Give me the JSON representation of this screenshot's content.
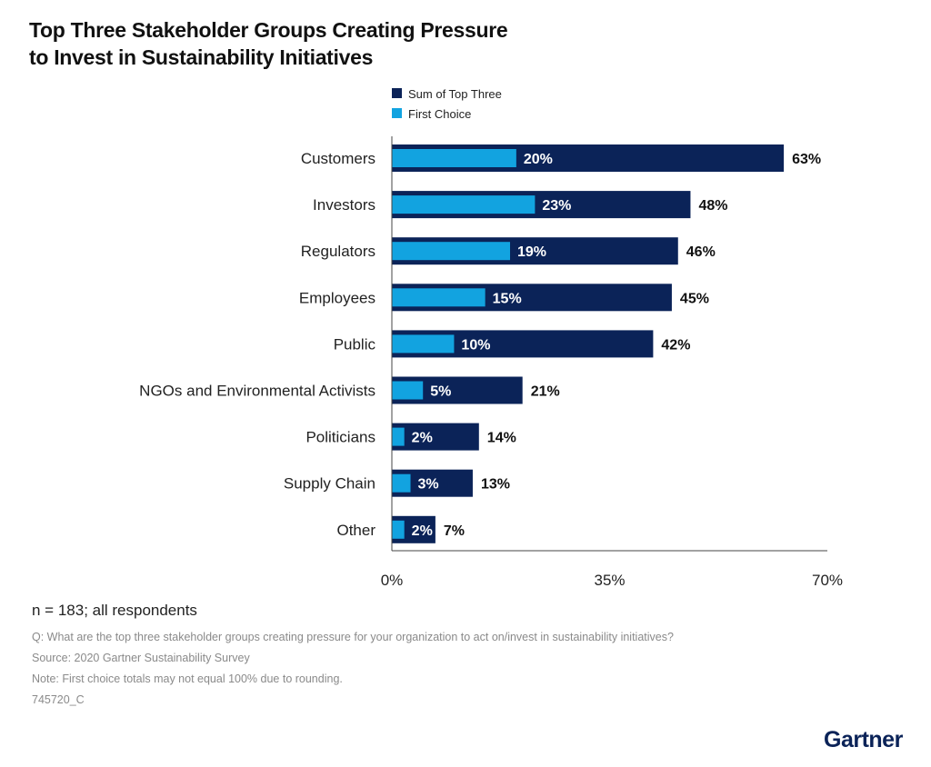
{
  "chart_data": {
    "type": "bar",
    "orientation": "horizontal",
    "title": "Top Three Stakeholder Groups Creating Pressure to Invest in Sustainability Initiatives",
    "categories": [
      "Customers",
      "Investors",
      "Regulators",
      "Employees",
      "Public",
      "NGOs and Environmental Activists",
      "Politicians",
      "Supply Chain",
      "Other"
    ],
    "series": [
      {
        "name": "Sum of Top Three",
        "color": "#0b2358",
        "values": [
          63,
          48,
          46,
          45,
          42,
          21,
          14,
          13,
          7
        ]
      },
      {
        "name": "First Choice",
        "color": "#12a3e0",
        "values": [
          20,
          23,
          19,
          15,
          10,
          5,
          2,
          3,
          2
        ]
      }
    ],
    "xlim": [
      0,
      70
    ],
    "xticks": [
      "0%",
      "35%",
      "70%"
    ],
    "legend": "top",
    "grid": false
  },
  "footer": {
    "sample": "n = 183; all respondents",
    "question": "Q: What are the top three stakeholder groups creating pressure for your organization to act on/invest in sustainability initiatives?",
    "source": "Source: 2020 Gartner Sustainability Survey",
    "note": "Note: First choice totals may not equal 100% due to rounding.",
    "code": "745720_C"
  },
  "logo": "Gartner"
}
